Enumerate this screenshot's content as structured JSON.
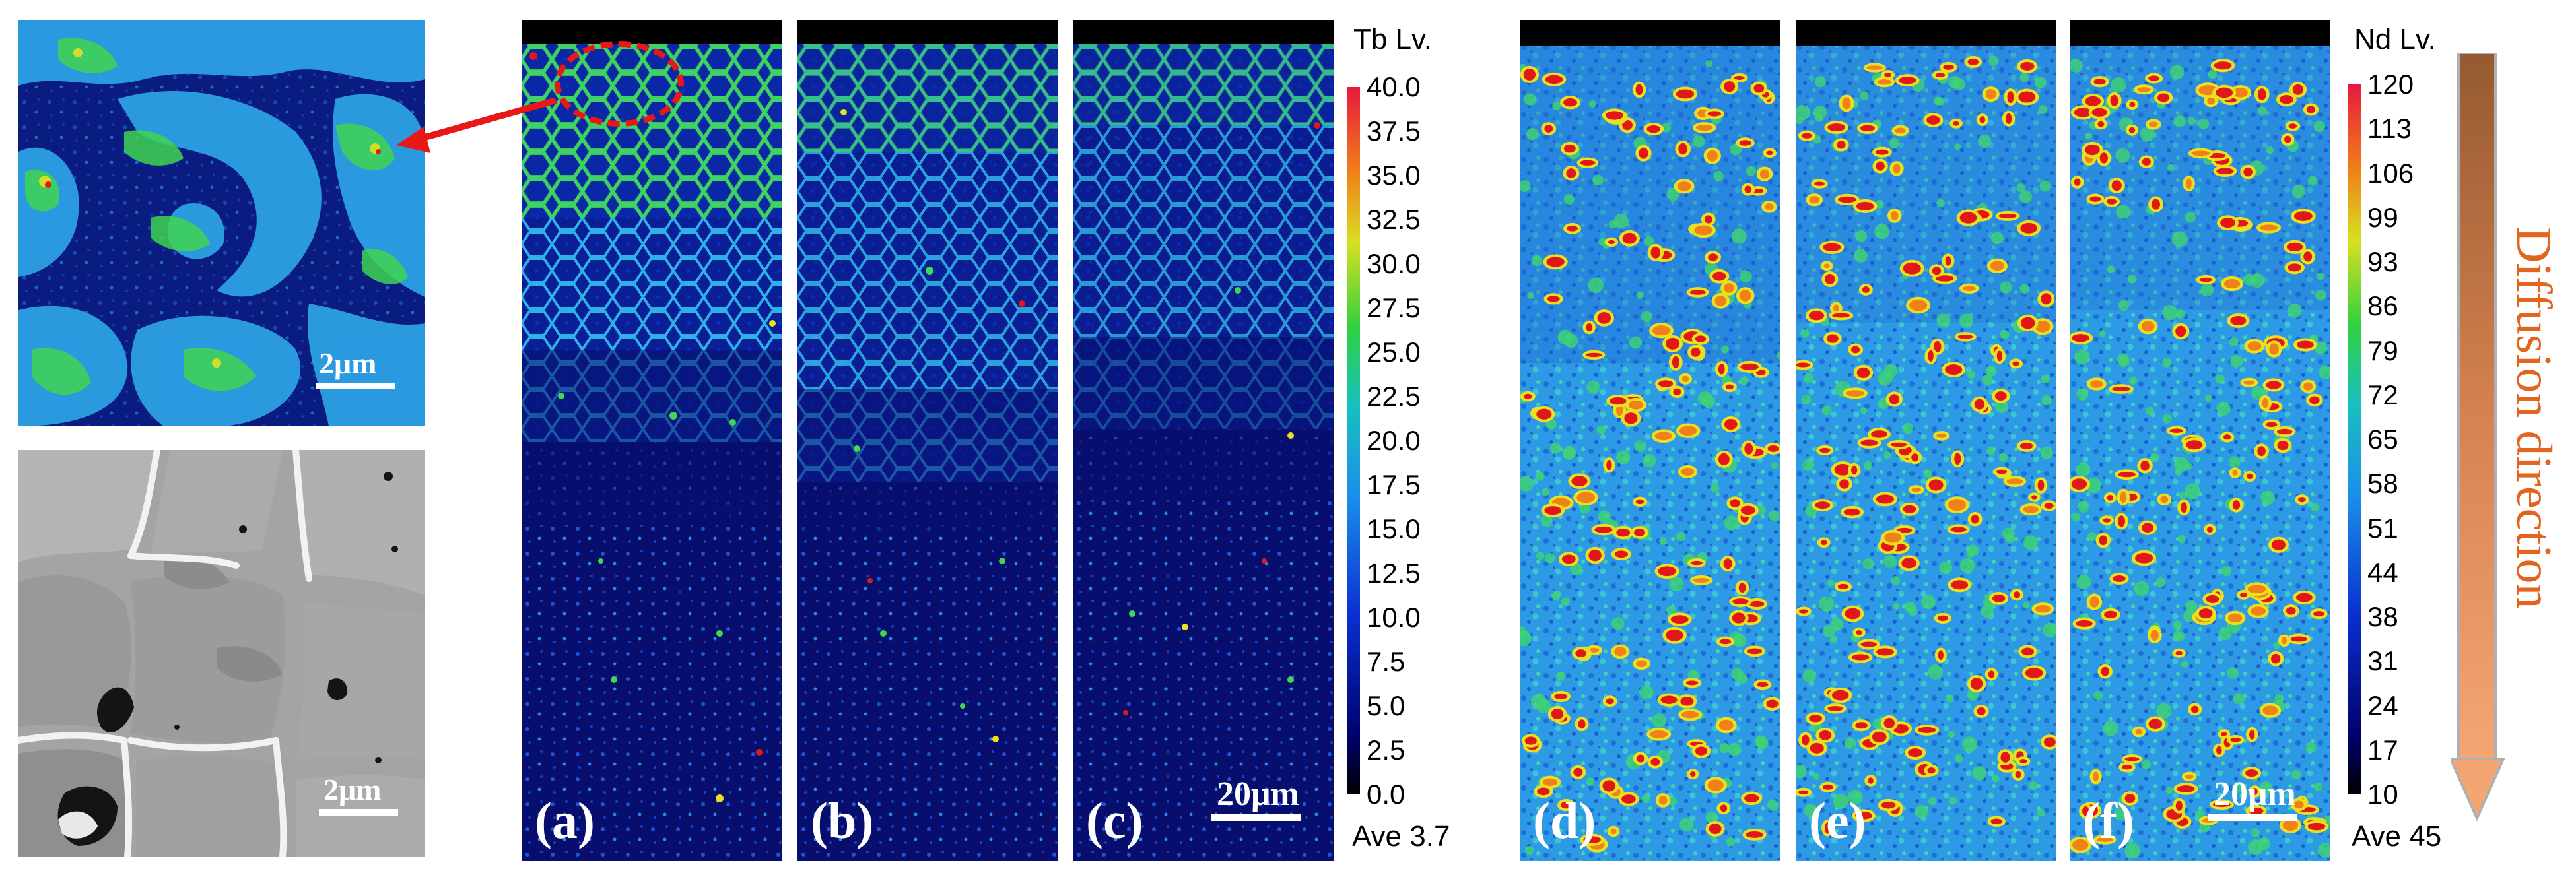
{
  "panels": {
    "a": "(a)",
    "b": "(b)",
    "c": "(c)",
    "d": "(d)",
    "e": "(e)",
    "f": "(f)"
  },
  "scale_bars": {
    "inset_tb": "2μm",
    "inset_bse": "2μm",
    "tb_maps": "20μm",
    "nd_maps": "20μm"
  },
  "tb_colorbar": {
    "title": "Tb Lv.",
    "ticks": [
      "40.0",
      "37.5",
      "35.0",
      "32.5",
      "30.0",
      "27.5",
      "25.0",
      "22.5",
      "20.0",
      "17.5",
      "15.0",
      "12.5",
      "10.0",
      "7.5",
      "5.0",
      "2.5",
      "0.0"
    ],
    "average": "Ave 3.7"
  },
  "nd_colorbar": {
    "title": "Nd Lv.",
    "ticks": [
      "120",
      "113",
      "106",
      "99",
      "93",
      "86",
      "79",
      "72",
      "65",
      "58",
      "51",
      "44",
      "38",
      "31",
      "24",
      "17",
      "10"
    ],
    "average": "Ave 45"
  },
  "diffusion_label": "Diffusion direction",
  "colors": {
    "map_dark": "#0a1a7a",
    "map_blue": "#1e55d8",
    "map_cyan": "#28a8e8",
    "map_green": "#38d848",
    "map_yellow": "#e8e020",
    "map_red": "#e01818",
    "annotation_red": "#e81818",
    "diffusion_text": "#e2641e",
    "arrow_top": "#9a5a2a",
    "arrow_bottom": "#f0a070"
  }
}
